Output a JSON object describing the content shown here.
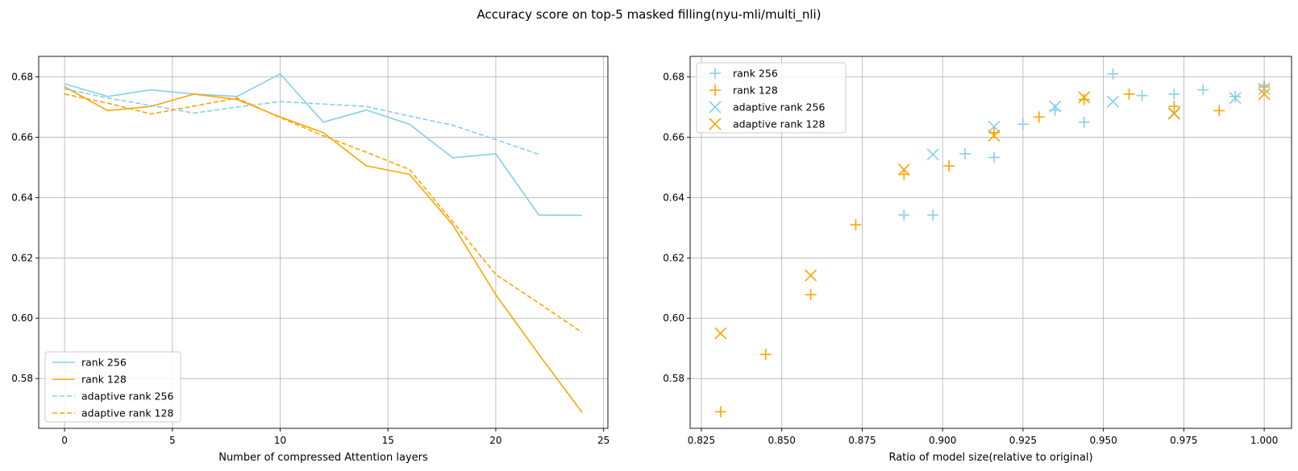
{
  "suptitle": "Accuracy score on top-5 masked filling(nyu-mli/multi_nli)",
  "colors": {
    "rank256": "#87CEEB",
    "rank128": "#FFA500",
    "grid": "#b0b0b0"
  },
  "chart_data": [
    {
      "type": "line",
      "xlabel": "Number of compressed Attention layers",
      "ylabel": "",
      "xlim": [
        -1.2,
        25.2
      ],
      "ylim": [
        0.5635,
        0.6868
      ],
      "xticks": [
        0,
        5,
        10,
        15,
        20,
        25
      ],
      "yticks": [
        0.58,
        0.6,
        0.62,
        0.64,
        0.66,
        0.68
      ],
      "grid": true,
      "legend_position": "lower left",
      "series": [
        {
          "name": "rank 256",
          "color_key": "rank256",
          "style": "solid",
          "x": [
            0,
            2,
            4,
            6,
            8,
            10,
            12,
            14,
            16,
            18,
            20,
            22,
            24
          ],
          "y": [
            0.6777,
            0.6735,
            0.6757,
            0.6743,
            0.6735,
            0.681,
            0.665,
            0.669,
            0.6643,
            0.6532,
            0.6545,
            0.6342,
            0.6341
          ]
        },
        {
          "name": "rank 128",
          "color_key": "rank128",
          "style": "solid",
          "x": [
            0,
            2,
            4,
            6,
            8,
            10,
            12,
            14,
            16,
            18,
            20,
            22,
            24
          ],
          "y": [
            0.6767,
            0.6688,
            0.6702,
            0.6743,
            0.6725,
            0.6667,
            0.6615,
            0.6505,
            0.6477,
            0.631,
            0.6078,
            0.588,
            0.5688
          ]
        },
        {
          "name": "adaptive rank 256",
          "color_key": "rank256",
          "style": "dashed",
          "x": [
            0,
            2,
            4,
            6,
            8,
            10,
            12,
            14,
            16,
            18,
            20,
            22
          ],
          "y": [
            0.676,
            0.673,
            0.6705,
            0.668,
            0.67,
            0.6718,
            0.671,
            0.6702,
            0.667,
            0.664,
            0.6592,
            0.6543
          ]
        },
        {
          "name": "adaptive rank 128",
          "color_key": "rank128",
          "style": "dashed",
          "x": [
            0,
            2,
            4,
            6,
            8,
            10,
            12,
            14,
            16,
            18,
            20,
            22,
            24
          ],
          "y": [
            0.6743,
            0.6713,
            0.6677,
            0.6703,
            0.673,
            0.6665,
            0.6605,
            0.655,
            0.6493,
            0.632,
            0.6145,
            0.605,
            0.5953
          ]
        }
      ]
    },
    {
      "type": "scatter",
      "xlabel": "Ratio of model size(relative to original)",
      "ylabel": "",
      "xlim": [
        0.8215,
        1.0085
      ],
      "ylim": [
        0.5635,
        0.6868
      ],
      "xticks": [
        0.825,
        0.85,
        0.875,
        0.9,
        0.925,
        0.95,
        0.975,
        1.0
      ],
      "yticks": [
        0.58,
        0.6,
        0.62,
        0.64,
        0.66,
        0.68
      ],
      "grid": true,
      "legend_position": "upper left",
      "series": [
        {
          "name": "rank 256",
          "color_key": "rank256",
          "marker": "plus",
          "x": [
            1.0,
            0.991,
            0.981,
            0.972,
            0.962,
            0.953,
            0.944,
            0.935,
            0.925,
            0.916,
            0.907,
            0.897,
            0.888
          ],
          "y": [
            0.6773,
            0.6735,
            0.6757,
            0.6743,
            0.6738,
            0.681,
            0.665,
            0.669,
            0.6643,
            0.6533,
            0.6545,
            0.6342,
            0.6342
          ]
        },
        {
          "name": "rank 128",
          "color_key": "rank128",
          "marker": "plus",
          "x": [
            1.0,
            0.986,
            0.972,
            0.958,
            0.944,
            0.93,
            0.916,
            0.902,
            0.888,
            0.873,
            0.859,
            0.845,
            0.831
          ],
          "y": [
            0.6767,
            0.6688,
            0.6702,
            0.6743,
            0.6725,
            0.6667,
            0.6615,
            0.6505,
            0.6477,
            0.631,
            0.6078,
            0.588,
            0.569
          ]
        },
        {
          "name": "adaptive rank 256",
          "color_key": "rank256",
          "marker": "x",
          "x": [
            1.0,
            0.991,
            0.972,
            0.953,
            0.935,
            0.916,
            0.897
          ],
          "y": [
            0.676,
            0.673,
            0.668,
            0.6718,
            0.6702,
            0.6635,
            0.6543
          ]
        },
        {
          "name": "adaptive rank 128",
          "color_key": "rank128",
          "marker": "x",
          "x": [
            1.0,
            0.972,
            0.944,
            0.916,
            0.888,
            0.859,
            0.831
          ],
          "y": [
            0.6743,
            0.6678,
            0.6732,
            0.6605,
            0.6493,
            0.6142,
            0.595
          ]
        }
      ]
    }
  ]
}
